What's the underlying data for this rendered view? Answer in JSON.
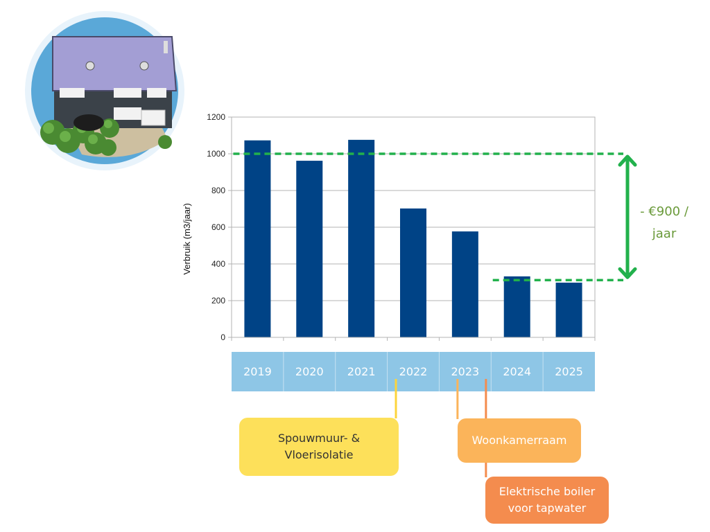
{
  "chart_data": {
    "type": "bar",
    "categories": [
      "2019",
      "2020",
      "2021",
      "2022",
      "2023",
      "2024",
      "2025"
    ],
    "values": [
      1073,
      962,
      1076,
      702,
      577,
      332,
      298
    ],
    "ylabel": "Verbruik (m3/jaar)",
    "xlabel": "",
    "ylim": [
      0,
      1200
    ],
    "yticks": [
      0,
      200,
      400,
      600,
      800,
      1000,
      1200
    ],
    "grid": true,
    "bar_color": "#004386",
    "reference_lines": [
      {
        "y": 1000,
        "from_category": "2019",
        "to_category": "2025",
        "color": "#22b14c",
        "style": "dashed"
      },
      {
        "y": 312,
        "from_category": "2024",
        "to_category": "2025",
        "color": "#22b14c",
        "style": "dashed"
      }
    ],
    "savings": {
      "label_lines": [
        "- €900 /",
        "jaar"
      ],
      "color": "#22b14c",
      "text_color": "#6a9a3a"
    }
  },
  "year_strip": {
    "color": "#8ec6e6",
    "text_color": "#ffffff"
  },
  "callouts": [
    {
      "id": "insulation",
      "text": "Spouwmuur- &\nVloerisolatie",
      "category": "2022",
      "color": "#fde05a",
      "line_color": "#fcd43c"
    },
    {
      "id": "window",
      "text": "Woonkamerraam",
      "category": "2023",
      "color": "#fbb45a",
      "line_color": "#fbb45a"
    },
    {
      "id": "boiler",
      "text": "Elektrische boiler\nvoor tapwater",
      "category": "2023",
      "color": "#f48c4e",
      "line_color": "#f48c4e"
    }
  ],
  "illustration": {
    "icon": "house-illustration"
  }
}
